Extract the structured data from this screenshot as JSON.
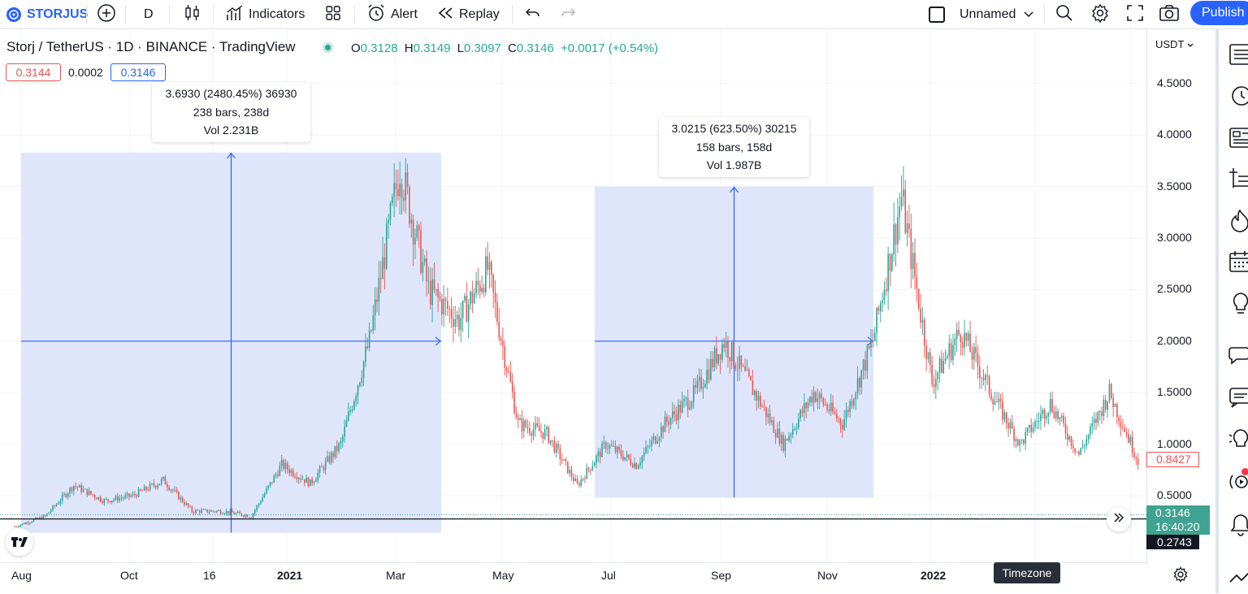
{
  "toolbar": {
    "symbol": "STORJUS",
    "interval": "D",
    "indicators_label": "Indicators",
    "alert_label": "Alert",
    "replay_label": "Replay",
    "layout_name": "Unnamed",
    "publish_label": "Publish"
  },
  "legend": {
    "title": "Storj / TetherUS · 1D · BINANCE · TradingView",
    "o_key": "O",
    "o_val": "0.3128",
    "h_key": "H",
    "h_val": "0.3149",
    "l_key": "L",
    "l_val": "0.3097",
    "c_key": "C",
    "c_val": "0.3146",
    "change": "+0.0017 (+0.54%)",
    "bid": "0.3144",
    "spread": "0.0002",
    "ask": "0.3146"
  },
  "price_scale": {
    "currency": "USDT",
    "ticks": [
      "4.5000",
      "4.0000",
      "3.5000",
      "3.0000",
      "2.5000",
      "2.0000",
      "1.5000",
      "1.0000",
      "0.5000"
    ],
    "hover_price": "0.8427",
    "last_price": "0.3146",
    "countdown": "16:40:20",
    "crosshair_price": "0.2743"
  },
  "time_scale": {
    "ticks": [
      {
        "label": "Aug",
        "bold": false
      },
      {
        "label": "Oct",
        "bold": false
      },
      {
        "label": "16",
        "bold": false
      },
      {
        "label": "2021",
        "bold": true
      },
      {
        "label": "Mar",
        "bold": false
      },
      {
        "label": "May",
        "bold": false
      },
      {
        "label": "Jul",
        "bold": false
      },
      {
        "label": "Sep",
        "bold": false
      },
      {
        "label": "Nov",
        "bold": false
      },
      {
        "label": "2022",
        "bold": true
      }
    ],
    "timezone_tooltip": "Timezone"
  },
  "measure1": {
    "line1": "3.6930 (2480.45%) 36930",
    "line2": "238 bars, 238d",
    "line3": "Vol 2.231B"
  },
  "measure2": {
    "line1": "3.0215 (623.50%) 30215",
    "line2": "158 bars, 158d",
    "line3": "Vol 1.987B"
  },
  "colors": {
    "up": "#26a69a",
    "down": "#ef5350",
    "accent": "#2962ff",
    "measure_fill": "#dde5fb",
    "measure_line": "#2962ff"
  },
  "icons": [
    "storj-logo-icon",
    "add-symbol-icon",
    "candles-icon",
    "indicators-icon",
    "templates-icon",
    "alert-icon",
    "replay-icon",
    "undo-icon",
    "redo-icon",
    "layout-checkbox-icon",
    "chevron-down-icon",
    "search-icon",
    "settings-icon",
    "fullscreen-icon",
    "camera-icon",
    "watchlist-icon",
    "clock-icon",
    "news-icon",
    "screener-icon",
    "hotlist-icon",
    "calendar-icon",
    "ideas-icon",
    "chat-icon",
    "chat-bubble-icon",
    "bulb-icon",
    "stream-icon",
    "bell-icon",
    "trend-icon",
    "gear-icon",
    "scroll-right-icon",
    "tradingview-logo-icon"
  ],
  "chart_data": {
    "type": "candlestick",
    "title": "Storj / TetherUS · 1D · BINANCE",
    "x_range": [
      "Jul 2020",
      "Mar 2022"
    ],
    "ylim": [
      0.2,
      4.7
    ],
    "measure_ranges": [
      {
        "from_price": 0.14,
        "to_price": 3.83,
        "bars": 238,
        "change_pct": 2480.45
      },
      {
        "from_price": 0.48,
        "to_price": 3.5,
        "bars": 158,
        "change_pct": 623.5
      }
    ],
    "close_path": [
      {
        "x": "Jul 2020",
        "y": 0.2
      },
      {
        "x": "Aug 2020",
        "y": 0.3
      },
      {
        "x": "Aug 2020",
        "y": 0.6
      },
      {
        "x": "Sep 2020",
        "y": 0.45
      },
      {
        "x": "Oct 2020",
        "y": 0.5
      },
      {
        "x": "Oct 2020",
        "y": 0.65
      },
      {
        "x": "Nov 2020",
        "y": 0.35
      },
      {
        "x": "Dec 2020",
        "y": 0.35
      },
      {
        "x": "Jan 2021",
        "y": 0.3
      },
      {
        "x": "Feb 2021",
        "y": 0.8
      },
      {
        "x": "Feb 2021",
        "y": 0.62
      },
      {
        "x": "Mar 2021",
        "y": 1.0
      },
      {
        "x": "Mar 2021",
        "y": 2.0
      },
      {
        "x": "Apr 2021",
        "y": 3.7
      },
      {
        "x": "Apr 2021",
        "y": 2.5
      },
      {
        "x": "May 2021",
        "y": 2.2
      },
      {
        "x": "May 2021",
        "y": 2.7
      },
      {
        "x": "Jun 2021",
        "y": 1.2
      },
      {
        "x": "Jun 2021",
        "y": 1.1
      },
      {
        "x": "Jul 2021",
        "y": 0.6
      },
      {
        "x": "Jul 2021",
        "y": 1.0
      },
      {
        "x": "Aug 2021",
        "y": 0.8
      },
      {
        "x": "Aug 2021",
        "y": 1.2
      },
      {
        "x": "Sep 2021",
        "y": 1.5
      },
      {
        "x": "Sep 2021",
        "y": 2.0
      },
      {
        "x": "Sep 2021",
        "y": 1.5
      },
      {
        "x": "Oct 2021",
        "y": 1.0
      },
      {
        "x": "Oct 2021",
        "y": 1.5
      },
      {
        "x": "Nov 2021",
        "y": 1.2
      },
      {
        "x": "Nov 2021",
        "y": 2.0
      },
      {
        "x": "Nov 2021",
        "y": 3.4
      },
      {
        "x": "Dec 2021",
        "y": 1.6
      },
      {
        "x": "Dec 2021",
        "y": 2.1
      },
      {
        "x": "Jan 2022",
        "y": 1.5
      },
      {
        "x": "Jan 2022",
        "y": 1.0
      },
      {
        "x": "Feb 2022",
        "y": 1.4
      },
      {
        "x": "Feb 2022",
        "y": 0.9
      },
      {
        "x": "Mar 2022",
        "y": 1.5
      },
      {
        "x": "Mar 2022",
        "y": 0.84
      }
    ]
  }
}
